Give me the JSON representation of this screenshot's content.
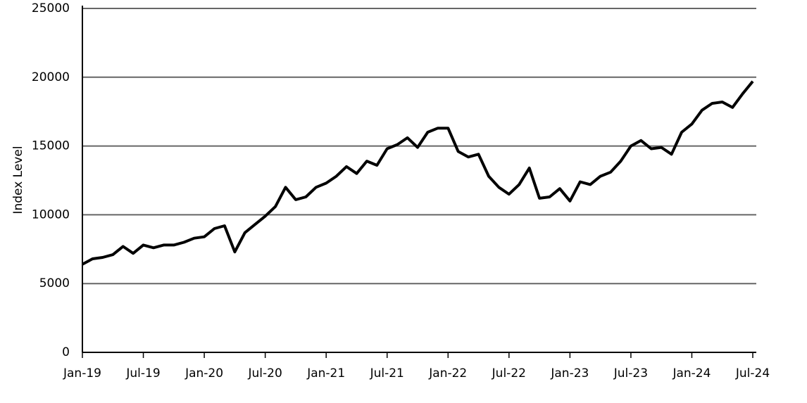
{
  "chart_data": {
    "type": "line",
    "y_label": "Index Level",
    "color": "#000000",
    "grid": true,
    "x": [
      "2019-01",
      "2019-02",
      "2019-03",
      "2019-04",
      "2019-05",
      "2019-06",
      "2019-07",
      "2019-08",
      "2019-09",
      "2019-10",
      "2019-11",
      "2019-12",
      "2020-01",
      "2020-02",
      "2020-03",
      "2020-04",
      "2020-05",
      "2020-06",
      "2020-07",
      "2020-08",
      "2020-09",
      "2020-10",
      "2020-11",
      "2020-12",
      "2021-01",
      "2021-02",
      "2021-03",
      "2021-04",
      "2021-05",
      "2021-06",
      "2021-07",
      "2021-08",
      "2021-09",
      "2021-10",
      "2021-11",
      "2021-12",
      "2022-01",
      "2022-02",
      "2022-03",
      "2022-04",
      "2022-05",
      "2022-06",
      "2022-07",
      "2022-08",
      "2022-09",
      "2022-10",
      "2022-11",
      "2022-12",
      "2023-01",
      "2023-02",
      "2023-03",
      "2023-04",
      "2023-05",
      "2023-06",
      "2023-07",
      "2023-08",
      "2023-09",
      "2023-10",
      "2023-11",
      "2023-12",
      "2024-01",
      "2024-02",
      "2024-03",
      "2024-04",
      "2024-05",
      "2024-06",
      "2024-07"
    ],
    "values": [
      6400,
      6800,
      6900,
      7100,
      7700,
      7200,
      7800,
      7600,
      7800,
      7800,
      8000,
      8300,
      8400,
      9000,
      9200,
      7300,
      8700,
      9300,
      9900,
      10600,
      12000,
      11100,
      11300,
      12000,
      12300,
      12800,
      13500,
      13000,
      13900,
      13600,
      14800,
      15100,
      15600,
      14900,
      16000,
      16300,
      16300,
      14600,
      14200,
      14400,
      12800,
      12000,
      11500,
      12200,
      13400,
      11200,
      11300,
      11900,
      11000,
      12400,
      12200,
      12800,
      13100,
      13900,
      15000,
      15400,
      14800,
      14900,
      14400,
      16000,
      16600,
      17600,
      18100,
      18200,
      17800,
      18800,
      19700
    ],
    "xlim": [
      "2019-01",
      "2024-07"
    ],
    "xticks": [
      {
        "value": "2019-01",
        "label": "Jan-19"
      },
      {
        "value": "2019-07",
        "label": "Jul-19"
      },
      {
        "value": "2020-01",
        "label": "Jan-20"
      },
      {
        "value": "2020-07",
        "label": "Jul-20"
      },
      {
        "value": "2021-01",
        "label": "Jan-21"
      },
      {
        "value": "2021-07",
        "label": "Jul-21"
      },
      {
        "value": "2022-01",
        "label": "Jan-22"
      },
      {
        "value": "2022-07",
        "label": "Jul-22"
      },
      {
        "value": "2023-01",
        "label": "Jan-23"
      },
      {
        "value": "2023-07",
        "label": "Jul-23"
      },
      {
        "value": "2024-01",
        "label": "Jan-24"
      },
      {
        "value": "2024-07",
        "label": "Jul-24"
      }
    ],
    "ylim": [
      0,
      25000
    ],
    "yticks": [
      0,
      5000,
      10000,
      15000,
      20000,
      25000
    ]
  }
}
